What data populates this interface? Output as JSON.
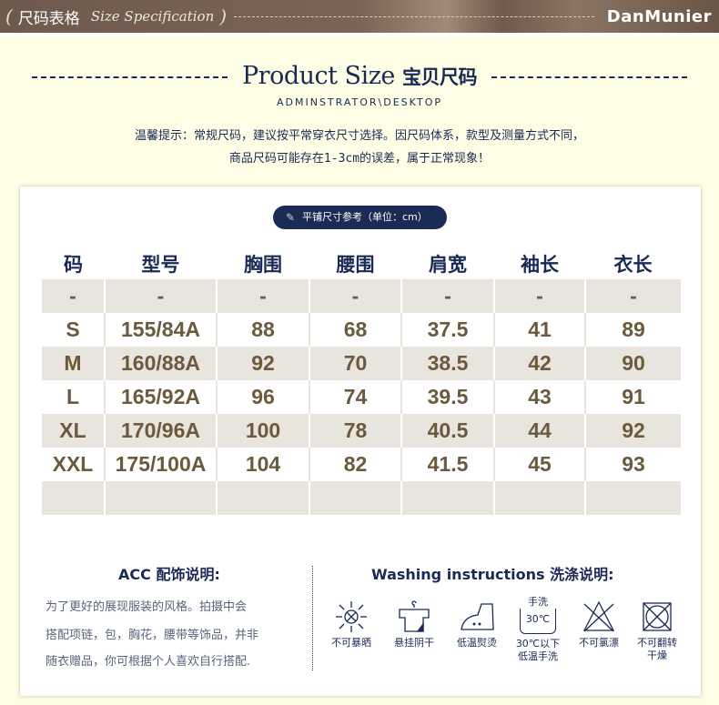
{
  "banner": {
    "title_cn": "尺码表格",
    "title_en": "Size Specification",
    "logo": "DanMunier"
  },
  "header": {
    "title_en": "Product Size",
    "title_cn": "宝贝尺码",
    "subtitle": "ADMINSTRATOR\\DESKTOP"
  },
  "tips": [
    "温馨提示：常规尺码，建议按平常穿衣尺寸选择。因尺码体系，款型及测量方式不同，",
    "商品尺码可能存在1-3cm的误差，属于正常现象！"
  ],
  "pill": "平铺尺寸参考（单位：cm）",
  "table": {
    "headers": [
      "码",
      "型号",
      "胸围",
      "腰围",
      "肩宽",
      "袖长",
      "衣长"
    ],
    "rows": [
      [
        "-",
        "-",
        "-",
        "-",
        "-",
        "-",
        "-"
      ],
      [
        "S",
        "155/84A",
        "88",
        "68",
        "37.5",
        "41",
        "89"
      ],
      [
        "M",
        "160/88A",
        "92",
        "70",
        "38.5",
        "42",
        "90"
      ],
      [
        "L",
        "165/92A",
        "96",
        "74",
        "39.5",
        "43",
        "91"
      ],
      [
        "XL",
        "170/96A",
        "100",
        "78",
        "40.5",
        "44",
        "92"
      ],
      [
        "XXL",
        "175/100A",
        "104",
        "82",
        "41.5",
        "45",
        "93"
      ],
      [
        "",
        "",
        "",
        "",
        "",
        "",
        ""
      ]
    ]
  },
  "acc": {
    "title": "ACC  配饰说明:",
    "lines": [
      "为了更好的展现服装的风格。拍摄中会",
      "搭配项链，包，胸花，腰带等饰品，并非",
      "随衣赠品，你可根据个人喜欢自行搭配."
    ]
  },
  "washing": {
    "title": "Washing instructions  洗涤说明:",
    "icons": [
      {
        "icon": "no-sun-icon",
        "label": "不可暴晒"
      },
      {
        "icon": "hang-dry-icon",
        "label": "悬挂阴干"
      },
      {
        "icon": "low-iron-icon",
        "label": "低温熨烫"
      },
      {
        "icon": "hand-wash-icon",
        "top": "手洗",
        "temp": "30℃",
        "label": "30℃以下",
        "label2": "低温手洗"
      },
      {
        "icon": "no-bleach-icon",
        "label": "不可氯漂"
      },
      {
        "icon": "no-tumble-dry-icon",
        "label": "不可翻转",
        "label2": "干燥"
      }
    ]
  },
  "colors": {
    "navy": "#1a2a55",
    "value": "#6b5a3e",
    "stripe": "#e8e5de",
    "background": "#fefde6"
  }
}
